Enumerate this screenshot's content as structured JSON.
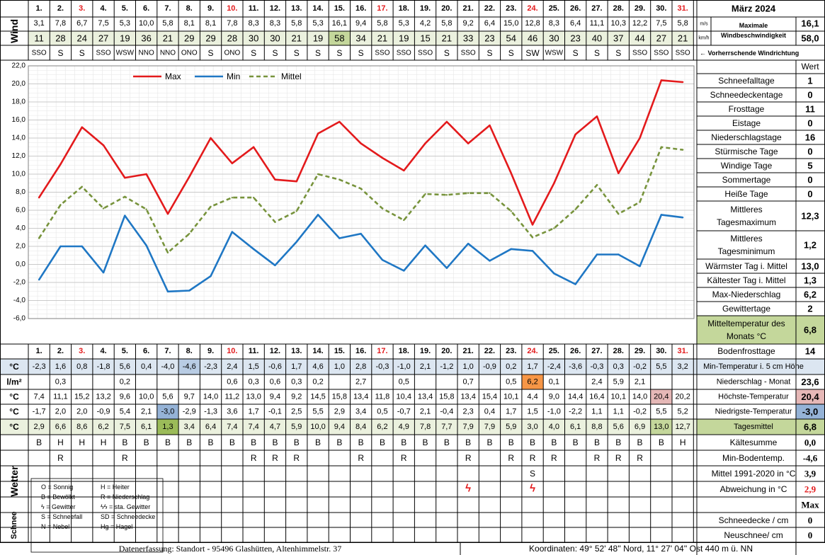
{
  "month_title": "März 2024",
  "days": [
    "1.",
    "2.",
    "3.",
    "4.",
    "5.",
    "6.",
    "7.",
    "8.",
    "9.",
    "10.",
    "11.",
    "12.",
    "13.",
    "14.",
    "15.",
    "16.",
    "17.",
    "18.",
    "19.",
    "20.",
    "21.",
    "22.",
    "23.",
    "24.",
    "25.",
    "26.",
    "27.",
    "28.",
    "29.",
    "30.",
    "31."
  ],
  "red_days": [
    3,
    10,
    17,
    24,
    31
  ],
  "wind": {
    "label": "Wind",
    "ms": [
      "3,1",
      "7,8",
      "6,7",
      "7,5",
      "5,3",
      "10,0",
      "5,8",
      "8,1",
      "8,1",
      "7,8",
      "8,3",
      "8,3",
      "5,8",
      "5,3",
      "16,1",
      "9,4",
      "5,8",
      "5,3",
      "4,2",
      "5,8",
      "9,2",
      "6,4",
      "15,0",
      "12,8",
      "8,3",
      "6,4",
      "11,1",
      "10,3",
      "12,2",
      "7,5",
      "5,8"
    ],
    "kmh": [
      "11",
      "28",
      "24",
      "27",
      "19",
      "36",
      "21",
      "29",
      "29",
      "28",
      "30",
      "30",
      "21",
      "19",
      "58",
      "34",
      "21",
      "19",
      "15",
      "21",
      "33",
      "23",
      "54",
      "46",
      "30",
      "23",
      "40",
      "37",
      "44",
      "27",
      "21"
    ],
    "dir": [
      "SSO",
      "S",
      "S",
      "SSO",
      "WSW",
      "NNO",
      "NNO",
      "ONO",
      "S",
      "ONO",
      "S",
      "S",
      "S",
      "S",
      "S",
      "S",
      "SSO",
      "SSO",
      "SSO",
      "S",
      "SSO",
      "S",
      "S",
      "SW",
      "WSW",
      "S",
      "S",
      "S",
      "SSO",
      "SSO",
      "SSO"
    ],
    "unit_ms": "m/s",
    "unit_kmh": "km/h",
    "max_label": "Maximale Windbeschwindigkeit",
    "max_ms": "16,1",
    "max_kmh": "58,0",
    "dir_caption": "← Vorherrschende Windrichtung",
    "highlight_day": 15,
    "colors": {
      "kmh_bg": "#ebf1de",
      "kmh_highlight": "#c4d79b"
    }
  },
  "chart_data": {
    "type": "line",
    "x": [
      1,
      2,
      3,
      4,
      5,
      6,
      7,
      8,
      9,
      10,
      11,
      12,
      13,
      14,
      15,
      16,
      17,
      18,
      19,
      20,
      21,
      22,
      23,
      24,
      25,
      26,
      27,
      28,
      29,
      30,
      31
    ],
    "series": [
      {
        "name": "Max",
        "color": "#e31a1c",
        "dash": false,
        "values": [
          7.4,
          11.1,
          15.2,
          13.2,
          9.6,
          10.0,
          5.6,
          9.7,
          14.0,
          11.2,
          13.0,
          9.4,
          9.2,
          14.5,
          15.8,
          13.4,
          11.8,
          10.4,
          13.4,
          15.8,
          13.4,
          15.4,
          10.1,
          4.4,
          9.0,
          14.4,
          16.4,
          10.1,
          14.0,
          20.4,
          20.2
        ]
      },
      {
        "name": "Min",
        "color": "#1f77c4",
        "dash": false,
        "values": [
          -1.7,
          2.0,
          2.0,
          -0.9,
          5.4,
          2.1,
          -3.0,
          -2.9,
          -1.3,
          3.6,
          1.7,
          -0.1,
          2.5,
          5.5,
          2.9,
          3.4,
          0.5,
          -0.7,
          2.1,
          -0.4,
          2.3,
          0.4,
          1.7,
          1.5,
          -1.0,
          -2.2,
          1.1,
          1.1,
          -0.2,
          5.5,
          5.2
        ]
      },
      {
        "name": "Mittel",
        "color": "#77933c",
        "dash": true,
        "values": [
          2.9,
          6.6,
          8.6,
          6.2,
          7.5,
          6.1,
          1.3,
          3.4,
          6.4,
          7.4,
          7.4,
          4.7,
          5.9,
          10.0,
          9.4,
          8.4,
          6.2,
          4.9,
          7.8,
          7.7,
          7.9,
          7.9,
          5.9,
          3.0,
          4.0,
          6.1,
          8.8,
          5.6,
          6.9,
          13.0,
          12.7
        ]
      }
    ],
    "ylim": [
      -6,
      22
    ],
    "yticks": [
      "22,0",
      "20,0",
      "18,0",
      "16,0",
      "14,0",
      "12,0",
      "10,0",
      "8,0",
      "6,0",
      "4,0",
      "2,0",
      "0,0",
      "-2,0",
      "-4,0",
      "-6,0"
    ],
    "grid": true,
    "legend": "top"
  },
  "rows": {
    "unit_c": "°C",
    "unit_lm2": "l/m²",
    "boden": [
      "-2,3",
      "1,6",
      "0,8",
      "-1,8",
      "5,6",
      "0,4",
      "-4,0",
      "-4,6",
      "-2,3",
      "2,4",
      "1,5",
      "-0,6",
      "1,7",
      "4,6",
      "1,0",
      "2,8",
      "-0,3",
      "-1,0",
      "2,1",
      "-1,2",
      "1,0",
      "-0,9",
      "0,2",
      "1,7",
      "-2,4",
      "-3,6",
      "-0,3",
      "0,3",
      "-0,2",
      "5,5",
      "3,2"
    ],
    "boden_highlight_day": 8,
    "niederschlag": [
      "",
      "0,3",
      "",
      "",
      "0,2",
      "",
      "",
      "",
      "",
      "0,6",
      "0,3",
      "0,6",
      "0,3",
      "0,2",
      "",
      "2,7",
      "",
      "0,5",
      "",
      "",
      "0,7",
      "",
      "0,5",
      "6,2",
      "0,1",
      "",
      "2,4",
      "5,9",
      "2,1",
      "",
      ""
    ],
    "niederschlag_highlight_day": 24,
    "max": [
      "7,4",
      "11,1",
      "15,2",
      "13,2",
      "9,6",
      "10,0",
      "5,6",
      "9,7",
      "14,0",
      "11,2",
      "13,0",
      "9,4",
      "9,2",
      "14,5",
      "15,8",
      "13,4",
      "11,8",
      "10,4",
      "13,4",
      "15,8",
      "13,4",
      "15,4",
      "10,1",
      "4,4",
      "9,0",
      "14,4",
      "16,4",
      "10,1",
      "14,0",
      "20,4",
      "20,2"
    ],
    "max_highlight_day": 30,
    "min": [
      "-1,7",
      "2,0",
      "2,0",
      "-0,9",
      "5,4",
      "2,1",
      "-3,0",
      "-2,9",
      "-1,3",
      "3,6",
      "1,7",
      "-0,1",
      "2,5",
      "5,5",
      "2,9",
      "3,4",
      "0,5",
      "-0,7",
      "2,1",
      "-0,4",
      "2,3",
      "0,4",
      "1,7",
      "1,5",
      "-1,0",
      "-2,2",
      "1,1",
      "1,1",
      "-0,2",
      "5,5",
      "5,2"
    ],
    "min_highlight_day": 7,
    "mittel": [
      "2,9",
      "6,6",
      "8,6",
      "6,2",
      "7,5",
      "6,1",
      "1,3",
      "3,4",
      "6,4",
      "7,4",
      "7,4",
      "4,7",
      "5,9",
      "10,0",
      "9,4",
      "8,4",
      "6,2",
      "4,9",
      "7,8",
      "7,7",
      "7,9",
      "7,9",
      "5,9",
      "3,0",
      "4,0",
      "6,1",
      "8,8",
      "5,6",
      "6,9",
      "13,0",
      "12,7"
    ],
    "mittel_low_day": 7,
    "mittel_high_day": 30,
    "colors": {
      "boden_bg": "#dce6f1",
      "boden_hl": "#b8cce4",
      "nied_hl": "#f79646",
      "max_hl": "#e6b8b7",
      "min_hl": "#95b3d7",
      "mittel_bg": "#ebf1de",
      "mittel_low": "#9bbb59",
      "mittel_high": "#c4d79b"
    }
  },
  "wetter": {
    "label": "Wetter",
    "row1": [
      "B",
      "H",
      "H",
      "H",
      "B",
      "B",
      "B",
      "B",
      "B",
      "B",
      "B",
      "B",
      "B",
      "B",
      "B",
      "B",
      "B",
      "B",
      "B",
      "B",
      "B",
      "B",
      "B",
      "B",
      "B",
      "B",
      "B",
      "B",
      "B",
      "B",
      "H"
    ],
    "row2": [
      "",
      "R",
      "",
      "",
      "R",
      "",
      "",
      "",
      "",
      "",
      "R",
      "R",
      "R",
      "",
      "",
      "R",
      "",
      "R",
      "",
      "",
      "R",
      "",
      "R",
      "R",
      "R",
      "",
      "R",
      "R",
      "R",
      "",
      ""
    ],
    "row3": [
      "",
      "",
      "",
      "",
      "",
      "",
      "",
      "",
      "",
      "",
      "",
      "",
      "",
      "",
      "",
      "",
      "",
      "",
      "",
      "",
      "",
      "",
      "",
      "S",
      "",
      "",
      "",
      "",
      "",
      "",
      ""
    ],
    "gewitter_days": [
      21,
      24
    ],
    "gewitter_symbol": "ϟ",
    "legend": [
      [
        "O = Sonnig",
        "H = Heiter"
      ],
      [
        "B = Bewölkt",
        "R = Niederschlag"
      ],
      [
        "ϟ = Gewitter",
        "ϟϟ = sta. Gewitter"
      ],
      [
        "S = Schneefall",
        "SD = Schneedecke"
      ],
      [
        "N = Nebel",
        "Hg = Hagel"
      ]
    ]
  },
  "schnee": {
    "label": "Schnee"
  },
  "stats": {
    "header": "Wert",
    "items": [
      {
        "label": "Schneefalltage",
        "value": "1"
      },
      {
        "label": "Schneedeckentage",
        "value": "0"
      },
      {
        "label": "Frosttage",
        "value": "11"
      },
      {
        "label": "Eistage",
        "value": "0"
      },
      {
        "label": "Niederschlagstage",
        "value": "16"
      },
      {
        "label": "Stürmische Tage",
        "value": "0"
      },
      {
        "label": "Windige Tage",
        "value": "5"
      },
      {
        "label": "Sommertage",
        "value": "0"
      },
      {
        "label": "Heiße Tage",
        "value": "0"
      },
      {
        "label": "Mittleres Tagesmaximum",
        "value": "12,3"
      },
      {
        "label": "Mittleres Tagesminimum",
        "value": "1,2"
      },
      {
        "label": "Wärmster Tag i. Mittel",
        "value": "13,0"
      },
      {
        "label": "Kältester Tag i. Mittel",
        "value": "1,3"
      },
      {
        "label": "Max-Niederschlag",
        "value": "6,2"
      },
      {
        "label": "Gewittertage",
        "value": "2"
      },
      {
        "label": "Mitteltemperatur des Monats °C",
        "value": "6,8"
      },
      {
        "label": "Bodenfrosttage",
        "value": "14"
      }
    ]
  },
  "row_stats": [
    {
      "label": "Min-Temperatur i. 5 cm Höhe",
      "value": ""
    },
    {
      "label": "Niederschlag - Monat",
      "value": "23,6"
    },
    {
      "label": "Höchste-Temperatur",
      "value": "20,4"
    },
    {
      "label": "Niedrigste-Temperatur",
      "value": "-3,0"
    },
    {
      "label": "Tagesmittel",
      "value": "6,8"
    }
  ],
  "lower_stats": [
    {
      "label": "Kältesumme",
      "value": "0,0"
    },
    {
      "label": "Min-Bodentemp.",
      "value": "-4,6"
    },
    {
      "label": "Mittel 1991-2020 in °C",
      "value": "3,9"
    },
    {
      "label": "Abweichung in °C",
      "value": "2,9",
      "color": "#e31a1c"
    },
    {
      "label": "",
      "value": "Max"
    },
    {
      "label": "Schneedecke / cm",
      "value": "0"
    },
    {
      "label": "Neuschnee/ cm",
      "value": "0"
    }
  ],
  "footer": {
    "left": "Datenerfassung:  Standort -  95496  Glashütten, Altenhimmelstr. 37",
    "right": "Koordinaten:  49° 52' 48'' Nord,   11° 27' 04'' Ost   440 m ü. NN"
  }
}
